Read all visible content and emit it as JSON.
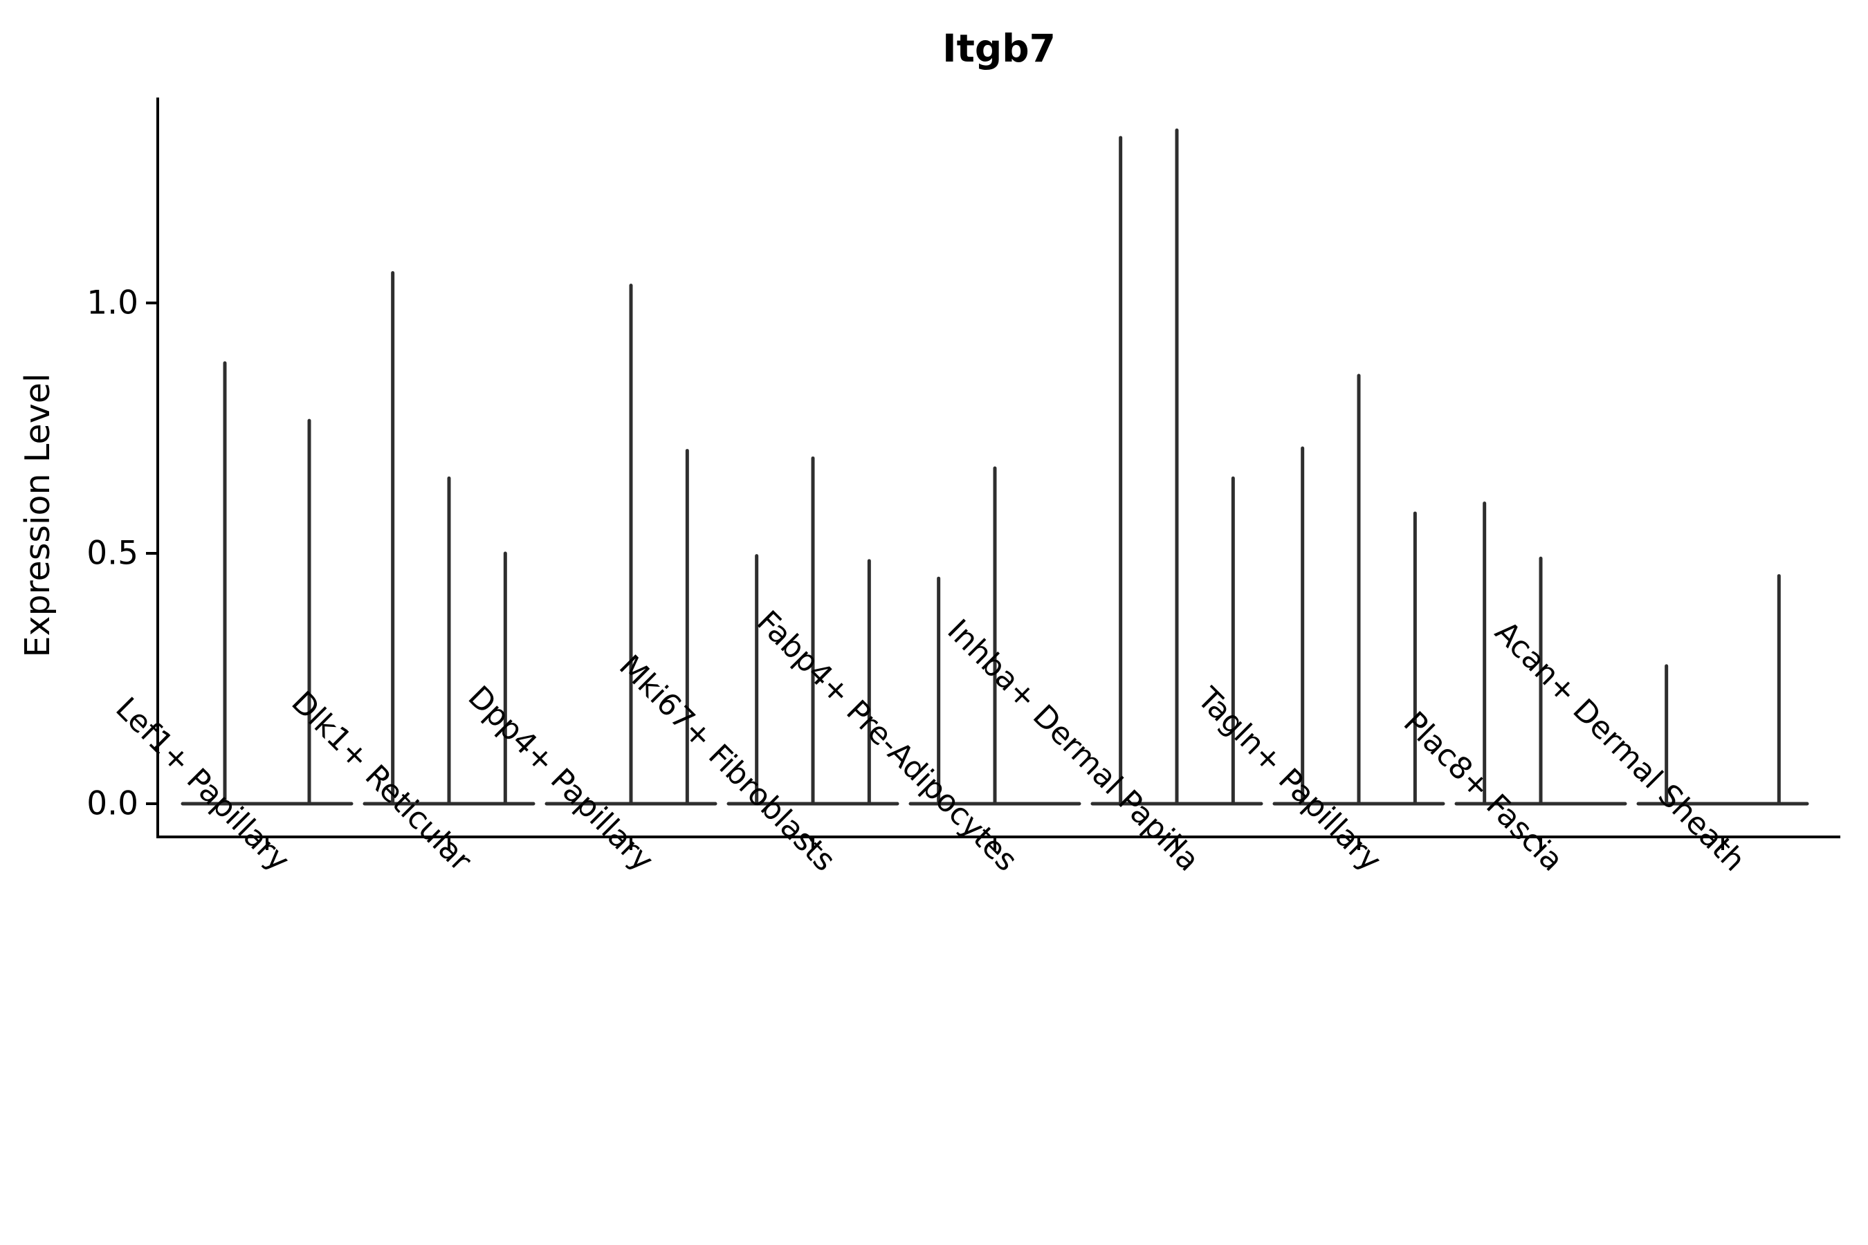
{
  "page": {
    "background": "#ffffff"
  },
  "chart_data": {
    "type": "violin",
    "title": "Itgb7",
    "ylabel": "Expression Level",
    "xlabel": "",
    "grid": false,
    "legend": "none",
    "line_color": "#2e2e2e",
    "axis_color": "#000000",
    "text_color": "#000000",
    "ylim": [
      -0.07,
      1.41
    ],
    "y_ticks": [
      "0.0",
      "0.5",
      "1.0"
    ],
    "y_tick_values": [
      0.0,
      0.5,
      1.0
    ],
    "categories": [
      "Lef1+ Papillary",
      "Dlk1+ Reticular",
      "Dpp4+ Papillary",
      "Mki67+ Fibroblasts",
      "Fabp4+ Pre-Adipocytes",
      "Inhba+ Dermal Papilla",
      "Tagln+ Papillary",
      "Plac8+ Fascia",
      "Acan+ Dermal Sheath"
    ],
    "violin_max_values": [
      [
        0.88,
        0.765
      ],
      [
        1.06,
        0.65,
        0.5
      ],
      [
        0.0,
        1.035,
        0.705
      ],
      [
        0.495,
        0.69,
        0.485
      ],
      [
        0.45,
        0.67,
        0.0
      ],
      [
        1.33,
        1.345,
        0.65
      ],
      [
        0.71,
        0.855,
        0.58
      ],
      [
        0.6,
        0.49,
        0.0
      ],
      [
        0.275,
        0.0,
        0.455
      ]
    ]
  }
}
